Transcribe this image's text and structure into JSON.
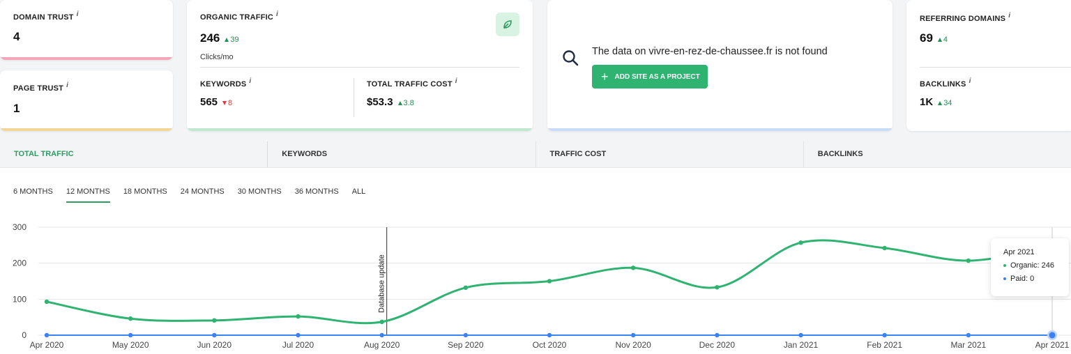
{
  "cards": {
    "domain_trust": {
      "label": "DOMAIN TRUST",
      "info": "i",
      "value": "4"
    },
    "page_trust": {
      "label": "PAGE TRUST",
      "info": "i",
      "value": "1"
    },
    "organic_traffic": {
      "label": "ORGANIC TRAFFIC",
      "info": "i",
      "value": "246",
      "delta": "39",
      "unit": "Clicks/mo"
    },
    "keywords": {
      "label": "KEYWORDS",
      "info": "i",
      "value": "565",
      "delta": "8"
    },
    "total_traffic_cost": {
      "label": "TOTAL TRAFFIC COST",
      "info": "i",
      "value": "$53.3",
      "delta": "3.8"
    },
    "not_found": {
      "message": "The data on vivre-en-rez-de-chaussee.fr is not found",
      "button_label": "ADD SITE AS A PROJECT"
    },
    "referring_domains": {
      "label": "REFERRING DOMAINS",
      "info": "i",
      "value": "69",
      "delta": "4"
    },
    "backlinks": {
      "label": "BACKLINKS",
      "info": "i",
      "value": "1K",
      "delta": "34"
    }
  },
  "tabs": [
    {
      "label": "TOTAL TRAFFIC",
      "active": true
    },
    {
      "label": "KEYWORDS",
      "active": false
    },
    {
      "label": "TRAFFIC COST",
      "active": false
    },
    {
      "label": "BACKLINKS",
      "active": false
    }
  ],
  "periods": [
    {
      "label": "6 MONTHS",
      "active": false
    },
    {
      "label": "12 MONTHS",
      "active": true
    },
    {
      "label": "18 MONTHS",
      "active": false
    },
    {
      "label": "24 MONTHS",
      "active": false
    },
    {
      "label": "30 MONTHS",
      "active": false
    },
    {
      "label": "36 MONTHS",
      "active": false
    },
    {
      "label": "ALL",
      "active": false
    }
  ],
  "tooltip": {
    "title": "Apr 2021",
    "organic_label": "Organic:",
    "organic_value": "246",
    "paid_label": "Paid:",
    "paid_value": "0"
  },
  "colors": {
    "green": "#2fb371",
    "blue": "#3b82f6",
    "pink": "#f4a6b8",
    "yellow": "#f3d59a",
    "lightgreen": "#bfe8cf",
    "lightblue": "#c7dcf7"
  },
  "icons": {
    "leaf": "leaf-icon",
    "search": "search-icon",
    "plus": "plus-icon",
    "info": "info-icon"
  },
  "chart_data": {
    "type": "line",
    "categories": [
      "Apr 2020",
      "May 2020",
      "Jun 2020",
      "Jul 2020",
      "Aug 2020",
      "Sep 2020",
      "Oct 2020",
      "Nov 2020",
      "Dec 2020",
      "Jan 2021",
      "Feb 2021",
      "Mar 2021",
      "Apr 2021"
    ],
    "series": [
      {
        "name": "Organic",
        "color": "#2fb371",
        "values": [
          93,
          46,
          41,
          52,
          37,
          132,
          150,
          187,
          133,
          257,
          242,
          207,
          246
        ]
      },
      {
        "name": "Paid",
        "color": "#3b82f6",
        "values": [
          0,
          0,
          0,
          0,
          0,
          0,
          0,
          0,
          0,
          0,
          0,
          0,
          0
        ]
      }
    ],
    "ylim": [
      0,
      300
    ],
    "yticks": [
      0,
      100,
      200,
      300
    ],
    "annotation": {
      "label": "Database update",
      "category": "Aug 2020"
    },
    "grid": true
  }
}
